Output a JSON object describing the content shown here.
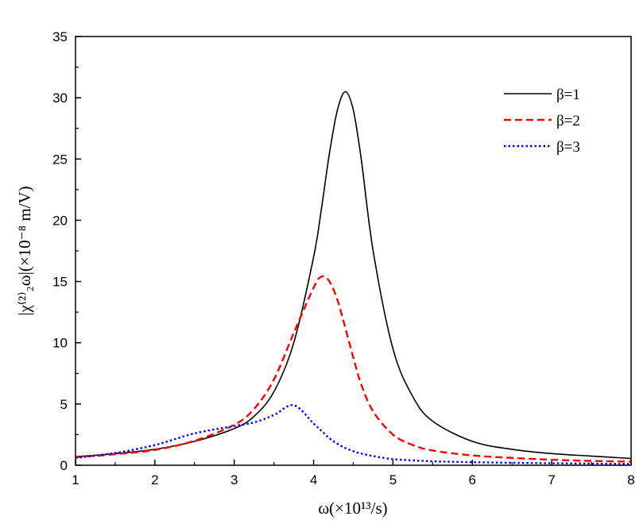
{
  "chart_data": {
    "type": "line",
    "xlabel": "ω(×10¹³/s)",
    "ylabel": "|χ⁽²⁾₂ω|(×10⁻⁸ m/V)",
    "xlim": [
      1,
      8
    ],
    "ylim": [
      0,
      35
    ],
    "xticks": [
      1,
      2,
      3,
      4,
      5,
      6,
      7,
      8
    ],
    "yticks": [
      0,
      5,
      10,
      15,
      20,
      25,
      30,
      35
    ],
    "grid": false,
    "legend_position": "top-right",
    "x": [
      1.0,
      1.5,
      2.0,
      2.5,
      3.0,
      3.25,
      3.5,
      3.75,
      4.0,
      4.1,
      4.2,
      4.3,
      4.4,
      4.5,
      4.6,
      4.75,
      5.0,
      5.25,
      5.5,
      6.0,
      6.5,
      7.0,
      7.5,
      8.0
    ],
    "series": [
      {
        "name": "β=1",
        "color": "#000000",
        "dash": "solid",
        "values": [
          0.7,
          0.95,
          1.3,
          1.95,
          3.0,
          4.0,
          6.0,
          10.0,
          17.0,
          21.0,
          25.5,
          29.0,
          30.5,
          29.0,
          25.0,
          17.5,
          9.5,
          5.6,
          3.6,
          1.95,
          1.3,
          0.95,
          0.75,
          0.55
        ]
      },
      {
        "name": "β=2",
        "color": "#ff0000",
        "dash": "dashed",
        "values": [
          0.65,
          0.9,
          1.25,
          2.0,
          3.3,
          4.6,
          7.0,
          10.8,
          14.5,
          15.4,
          15.0,
          13.5,
          11.2,
          8.8,
          6.6,
          4.4,
          2.5,
          1.65,
          1.2,
          0.8,
          0.6,
          0.45,
          0.35,
          0.3
        ]
      },
      {
        "name": "β=3",
        "color": "#0000ff",
        "dash": "dotted",
        "values": [
          0.6,
          1.0,
          1.65,
          2.6,
          3.2,
          3.5,
          4.1,
          4.9,
          3.4,
          2.8,
          2.2,
          1.75,
          1.4,
          1.15,
          0.95,
          0.75,
          0.5,
          0.4,
          0.32,
          0.25,
          0.2,
          0.16,
          0.13,
          0.1
        ]
      }
    ]
  }
}
